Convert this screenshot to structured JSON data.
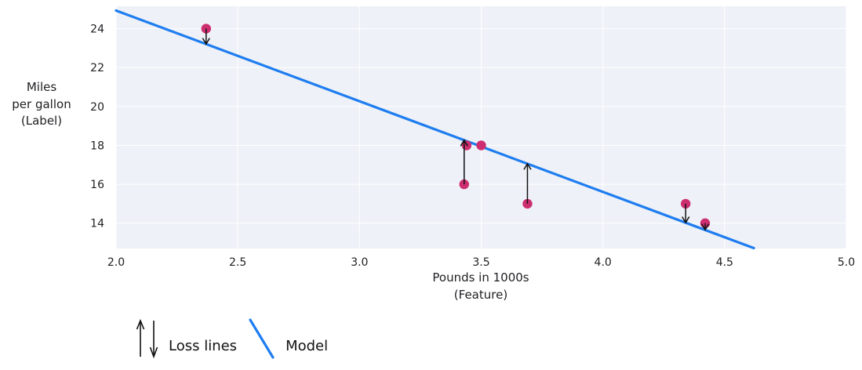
{
  "figure": {
    "background": "#ffffff",
    "plot_background": "#eef1f7",
    "grid_color": "#ffffff",
    "text_color": "#202124"
  },
  "chart_data": {
    "type": "scatter",
    "title": "",
    "xlabel_lines": [
      "Pounds in 1000s",
      "(Feature)"
    ],
    "ylabel_lines": [
      "Miles",
      "per gallon",
      "(Label)"
    ],
    "x_ticks": [
      "2.0",
      "2.5",
      "3.0",
      "3.5",
      "4.0",
      "4.5",
      "5.0"
    ],
    "y_ticks": [
      14,
      16,
      18,
      20,
      22,
      24
    ],
    "xlim": [
      2.0,
      5.0
    ],
    "ylim": [
      12.7,
      25.15
    ],
    "grid": true,
    "points": [
      {
        "x": 2.37,
        "y": 24
      },
      {
        "x": 3.43,
        "y": 16
      },
      {
        "x": 3.44,
        "y": 18
      },
      {
        "x": 3.5,
        "y": 18
      },
      {
        "x": 3.69,
        "y": 15
      },
      {
        "x": 4.34,
        "y": 15
      },
      {
        "x": 4.42,
        "y": 14
      }
    ],
    "point_color": "#cd2e70",
    "model_line": {
      "slope": -4.66,
      "intercept": 34.25,
      "x_start": 2.0,
      "x_end": 4.62,
      "color": "#1e7df0"
    },
    "loss_lines": [
      {
        "x": 2.37,
        "from_y": 24,
        "to_y": 23.21,
        "direction": "down"
      },
      {
        "x": 3.43,
        "from_y": 16,
        "to_y": 18.27,
        "direction": "up"
      },
      {
        "x": 3.69,
        "from_y": 15,
        "to_y": 17.06,
        "direction": "up"
      },
      {
        "x": 4.34,
        "from_y": 15,
        "to_y": 14.03,
        "direction": "down"
      },
      {
        "x": 4.42,
        "from_y": 14,
        "to_y": 13.66,
        "direction": "down"
      }
    ],
    "loss_color": "#111111",
    "legend": {
      "position": "bottom-left",
      "items": [
        {
          "label": "Loss lines",
          "symbol": "up-down-arrows"
        },
        {
          "label": "Model",
          "symbol": "diagonal-line"
        }
      ]
    }
  }
}
